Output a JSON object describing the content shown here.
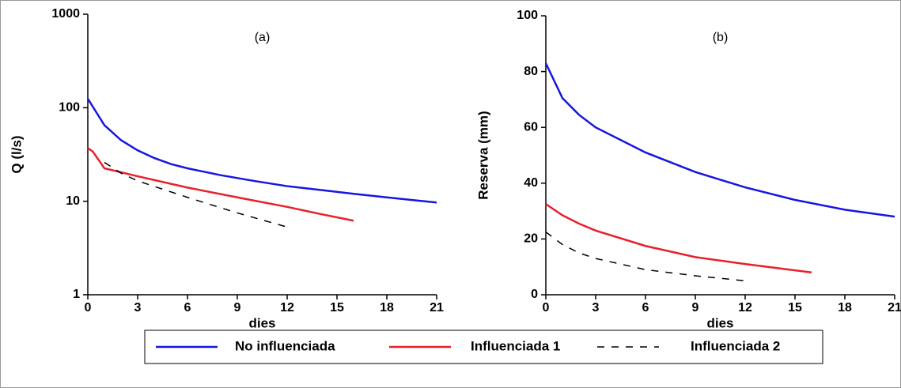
{
  "chart_data": [
    {
      "type": "line",
      "annotation": "(a)",
      "x_label": "dies",
      "y_label": "Q (l/s)",
      "yscale": "log",
      "xlim": [
        0,
        21
      ],
      "xticks": [
        0,
        3,
        6,
        9,
        12,
        15,
        18,
        21
      ],
      "ylim": [
        1,
        1000
      ],
      "yticks": [
        1,
        10,
        100,
        1000
      ],
      "legend": "bottom",
      "series": [
        {
          "name": "No influenciada",
          "color": "#1616e0",
          "dash": "solid",
          "x": [
            0,
            1,
            2,
            3,
            4,
            5,
            6,
            8,
            10,
            12,
            14,
            16,
            18,
            20,
            21
          ],
          "values": [
            125,
            65,
            45,
            35,
            29,
            25,
            22.5,
            19,
            16.5,
            14.5,
            13.2,
            12,
            11,
            10.1,
            9.7
          ]
        },
        {
          "name": "Influenciada 1",
          "color": "#e8202a",
          "dash": "solid",
          "x": [
            0,
            0.3,
            1,
            3,
            6,
            9,
            12,
            14,
            16
          ],
          "values": [
            37,
            34,
            22.5,
            18.5,
            14,
            11,
            8.7,
            7.3,
            6.2
          ]
        },
        {
          "name": "Influenciada 2",
          "color": "#000000",
          "dash": "dashed",
          "x": [
            1,
            2,
            3,
            6,
            9,
            12
          ],
          "values": [
            26,
            20,
            16.5,
            11,
            7.5,
            5.3
          ]
        }
      ]
    },
    {
      "type": "line",
      "annotation": "(b)",
      "x_label": "dies",
      "y_label": "Reserva (mm)",
      "yscale": "linear",
      "xlim": [
        0,
        21
      ],
      "xticks": [
        0,
        3,
        6,
        9,
        12,
        15,
        18,
        21
      ],
      "ylim": [
        0,
        100
      ],
      "yticks": [
        0,
        20,
        40,
        60,
        80,
        100
      ],
      "series": [
        {
          "name": "No influenciada",
          "color": "#1616e0",
          "dash": "solid",
          "x": [
            0,
            1,
            2,
            3,
            6,
            9,
            12,
            15,
            18,
            21
          ],
          "values": [
            83,
            70.5,
            64.5,
            60,
            51,
            44,
            38.5,
            34,
            30.5,
            28
          ]
        },
        {
          "name": "Influenciada 1",
          "color": "#e8202a",
          "dash": "solid",
          "x": [
            0,
            1,
            2,
            3,
            6,
            9,
            12,
            16
          ],
          "values": [
            32.5,
            28.5,
            25.5,
            23,
            17.5,
            13.5,
            11,
            8
          ]
        },
        {
          "name": "Influenciada 2",
          "color": "#000000",
          "dash": "dashed",
          "x": [
            0,
            1,
            2,
            3,
            6,
            9,
            12
          ],
          "values": [
            22.5,
            18,
            15,
            13,
            9,
            6.8,
            5
          ]
        }
      ]
    }
  ]
}
